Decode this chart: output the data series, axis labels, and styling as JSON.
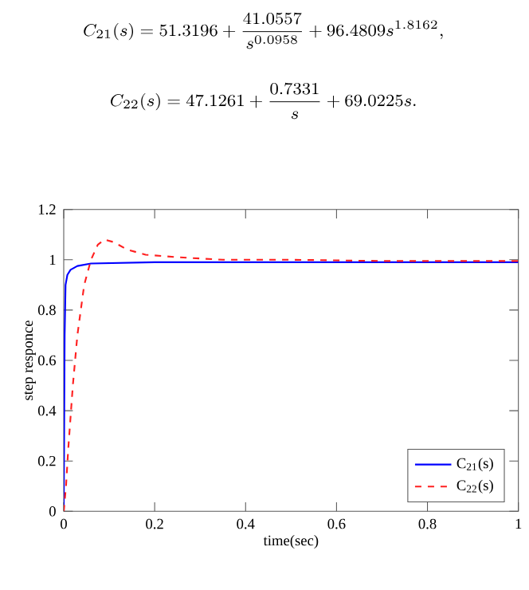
{
  "chart_data": {
    "type": "line",
    "xlabel": "time(sec)",
    "ylabel": "step responce",
    "annotations": [
      "C_{21}(s) = 51.3196 + \\frac{41.0557}{s^{0.0958}} + 96.4809s^{1.8162},",
      "C_{22}(s) = 47.1261 + \\frac{0.7331}{s} + 69.0225s."
    ],
    "xlim": [
      0,
      1
    ],
    "ylim": [
      0,
      1.2
    ],
    "xticks": [
      0,
      0.2,
      0.4,
      0.6,
      0.8,
      1
    ],
    "yticks": [
      0,
      0.2,
      0.4,
      0.6,
      0.8,
      1,
      1.2
    ],
    "grid": false,
    "legend": "bottom right",
    "series": [
      {
        "name": "C$_{21}$(s)",
        "color": "#0000ff",
        "line_style": "solid",
        "x": [
          0,
          0.002,
          0.004,
          0.008,
          0.015,
          0.03,
          0.06,
          0.2,
          0.5,
          1
        ],
        "values": [
          0,
          0.7,
          0.9,
          0.94,
          0.96,
          0.975,
          0.985,
          0.99,
          0.99,
          0.99
        ]
      },
      {
        "name": "C$_{22}$(s)",
        "color": "#ff2020",
        "line_style": "dashed",
        "x": [
          0,
          0.005,
          0.01,
          0.02,
          0.03,
          0.045,
          0.06,
          0.075,
          0.09,
          0.11,
          0.14,
          0.18,
          0.25,
          0.35,
          0.5,
          0.7,
          1
        ],
        "values": [
          0,
          0.1,
          0.25,
          0.5,
          0.7,
          0.9,
          1.0,
          1.06,
          1.08,
          1.07,
          1.04,
          1.02,
          1.01,
          1.0,
          1.0,
          0.995,
          0.995
        ]
      }
    ]
  }
}
